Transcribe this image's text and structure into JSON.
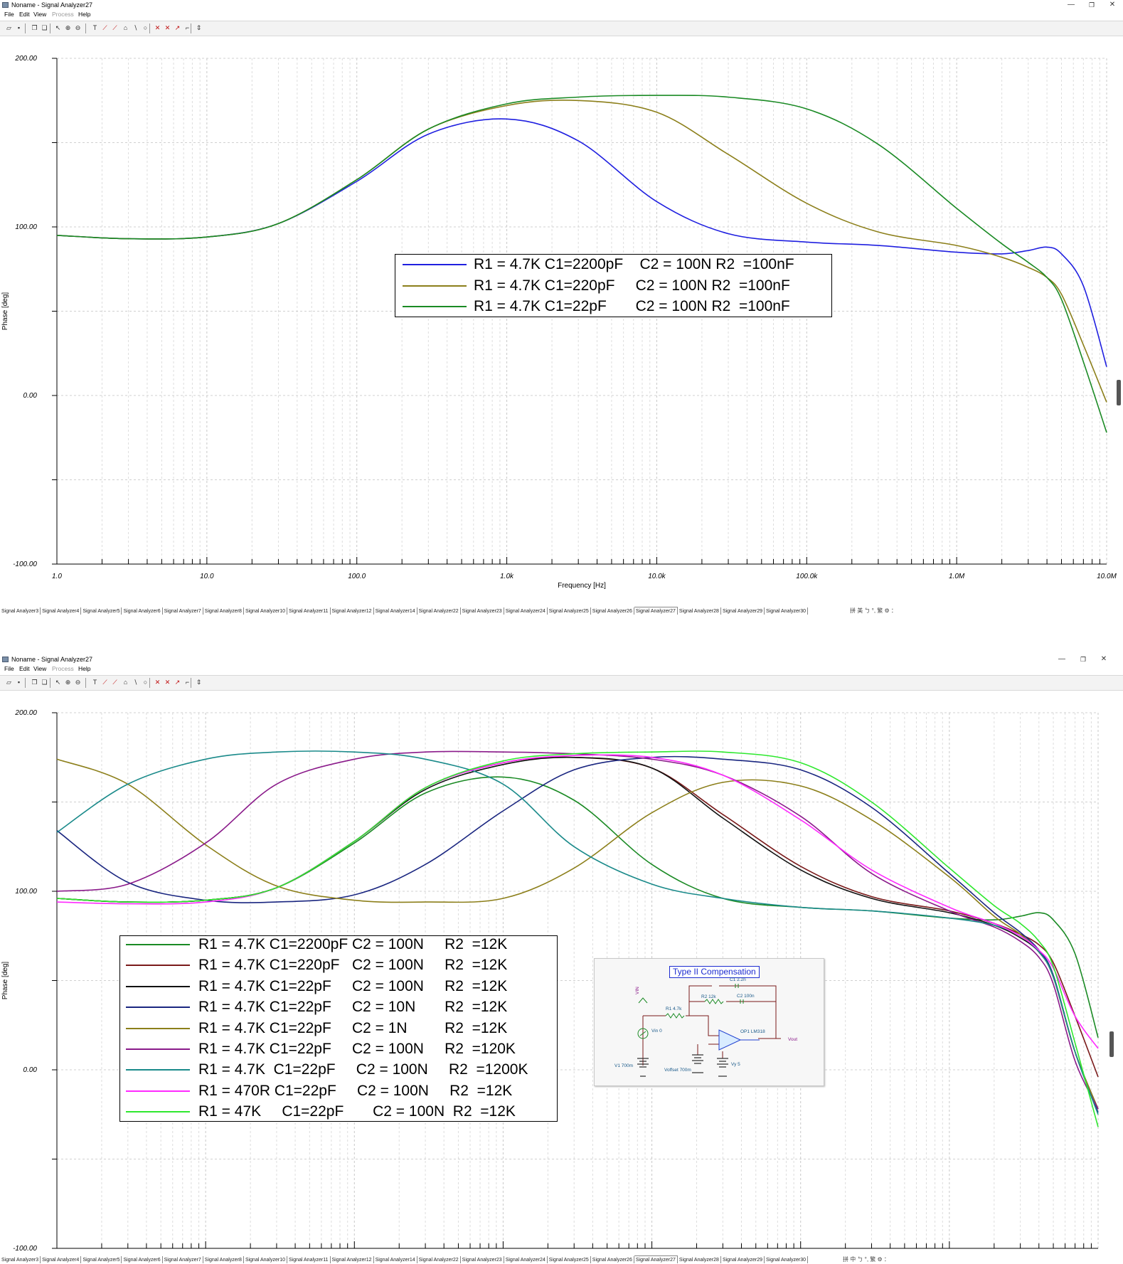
{
  "windows": [
    {
      "title": "Noname - Signal Analyzer27",
      "menu": [
        "File",
        "Edit",
        "View",
        "Process",
        "Help"
      ],
      "menu_disabled": [
        "Process"
      ],
      "window_controls": [
        "minimize-icon",
        "restore-icon",
        "close-icon"
      ],
      "toolbar_icons": [
        "open-icon",
        "save-icon",
        "copy-icon",
        "paste-icon",
        "pointer-icon",
        "zoom-in-icon",
        "zoom-out-icon",
        "text-icon",
        "cursor-a-icon",
        "cursor-b-icon",
        "marker-icon",
        "line-icon",
        "circle-icon",
        "x-cursor-icon",
        "y-cursor-icon",
        "tangent-icon",
        "peak-icon",
        "scroll-arrows-icon"
      ],
      "tabs": [
        "Signal Analyzer3",
        "Signal Analyzer4",
        "Signal Analyzer5",
        "Signal Analyzer6",
        "Signal Analyzer7",
        "Signal Analyzer8",
        "Signal Analyzer10",
        "Signal Analyzer11",
        "Signal Analyzer12",
        "Signal Analyzer14",
        "Signal Analyzer22",
        "Signal Analyzer23",
        "Signal Analyzer24",
        "Signal Analyzer25",
        "Signal Analyzer26",
        "Signal Analyzer27",
        "Signal Analyzer28",
        "Signal Analyzer29",
        "Signal Analyzer30"
      ],
      "active_tab": "Signal Analyzer27",
      "ime_text": "拼 美 ㄅ °, 繁 ⚙ ：",
      "chart_data": {
        "type": "line",
        "title": "",
        "xlabel": "Frequency [Hz]",
        "ylabel": "Phase [deg]",
        "xscale": "log",
        "xlim": [
          1,
          10000000
        ],
        "ylim": [
          -100,
          200
        ],
        "xticks": [
          "1.0",
          "10.0",
          "100.0",
          "1.0k",
          "10.0k",
          "100.0k",
          "1.0M",
          "10.0M"
        ],
        "yticks": [
          "200.00",
          "100.00",
          "0.00",
          "-100.00"
        ],
        "grid": true,
        "legend_position": "center",
        "series": [
          {
            "name": "R1 = 4.7K C1=2200pF    C2 = 100N R2  =100nF",
            "color": "#1f1fe0",
            "x": [
              1,
              3,
              10,
              30,
              100,
              300,
              1000,
              3000,
              10000,
              30000,
              100000,
              300000,
              1000000,
              2000000,
              3000000,
              4000000,
              5000000,
              7000000,
              10000000
            ],
            "y": [
              95,
              93,
              94,
              102,
              127,
              155,
              164,
              151,
              115,
              96,
              91,
              89,
              85,
              84,
              86,
              88,
              84,
              65,
              17
            ]
          },
          {
            "name": "R1 = 4.7K C1=220pF     C2 = 100N R2  =100nF",
            "color": "#8c7f1a",
            "x": [
              1,
              3,
              10,
              30,
              100,
              300,
              1000,
              3000,
              10000,
              30000,
              100000,
              300000,
              1000000,
              2000000,
              3000000,
              4000000,
              5000000,
              7000000,
              10000000
            ],
            "y": [
              95,
              93,
              94,
              102,
              128,
              158,
              172,
              175,
              168,
              143,
              114,
              97,
              89,
              82,
              76,
              70,
              60,
              30,
              -4
            ]
          },
          {
            "name": "R1 = 4.7K C1=22pF       C2 = 100N R2  =100nF",
            "color": "#1a8a24",
            "x": [
              1,
              3,
              10,
              30,
              100,
              300,
              1000,
              3000,
              10000,
              30000,
              100000,
              300000,
              1000000,
              2000000,
              3000000,
              4000000,
              5000000,
              7000000,
              10000000
            ],
            "y": [
              95,
              93,
              94,
              102,
              128,
              158,
              173,
              177,
              178,
              177,
              170,
              149,
              111,
              90,
              79,
              70,
              57,
              20,
              -22
            ]
          }
        ]
      }
    },
    {
      "title": "Noname - Signal Analyzer27",
      "menu": [
        "File",
        "Edit",
        "View",
        "Process",
        "Help"
      ],
      "menu_disabled": [
        "Process"
      ],
      "window_controls": [
        "minimize-icon",
        "restore-icon",
        "close-icon"
      ],
      "toolbar_icons": [
        "open-icon",
        "save-icon",
        "copy-icon",
        "paste-icon",
        "pointer-icon",
        "zoom-in-icon",
        "zoom-out-icon",
        "text-icon",
        "cursor-a-icon",
        "cursor-b-icon",
        "marker-icon",
        "line-icon",
        "circle-icon",
        "x-cursor-icon",
        "y-cursor-icon",
        "tangent-icon",
        "peak-icon",
        "scroll-arrows-icon"
      ],
      "tabs": [
        "Signal Analyzer3",
        "Signal Analyzer4",
        "Signal Analyzer5",
        "Signal Analyzer6",
        "Signal Analyzer7",
        "Signal Analyzer8",
        "Signal Analyzer10",
        "Signal Analyzer11",
        "Signal Analyzer12",
        "Signal Analyzer14",
        "Signal Analyzer22",
        "Signal Analyzer23",
        "Signal Analyzer24",
        "Signal Analyzer25",
        "Signal Analyzer26",
        "Signal Analyzer27",
        "Signal Analyzer28",
        "Signal Analyzer29",
        "Signal Analyzer30"
      ],
      "active_tab": "Signal Analyzer27",
      "ime_text": "拼 中 ㄅ °, 繁 ⚙ ：",
      "schematic": {
        "title": "Type II Compensation",
        "labels": [
          "VIN",
          "R1 4.7k",
          "R2 12k",
          "C1 2.2n",
          "C2 100n",
          "Vin 0",
          "OP1 LM318",
          "Vout",
          "V1 700m",
          "Voffset 700m",
          "Vy 5"
        ]
      },
      "chart_data": {
        "type": "line",
        "title": "",
        "xlabel": "Frequency [Hz]",
        "ylabel": "Phase [deg]",
        "xscale": "log",
        "xlim": [
          1,
          10000000
        ],
        "ylim": [
          -100,
          200
        ],
        "xticks": [
          "1.0",
          "10.0",
          "100.0",
          "1.0k",
          "10.0k",
          "100.0k",
          "1.0M",
          "10.0M"
        ],
        "yticks": [
          "200.00",
          "100.00",
          "0.00",
          "-100.00"
        ],
        "grid": true,
        "legend_position": "bottom-left",
        "series": [
          {
            "name": "R1 = 4.7K C1=2200pF C2 = 100N     R2  =12K",
            "color": "#1a8a24",
            "x": [
              1,
              3,
              10,
              30,
              100,
              300,
              1000,
              3000,
              10000,
              30000,
              100000,
              300000,
              1000000,
              2000000,
              3000000,
              4000000,
              5000000,
              7000000,
              10000000
            ],
            "y": [
              96,
              94,
              95,
              102,
              127,
              155,
              164,
              151,
              115,
              96,
              91,
              89,
              85,
              84,
              86,
              88,
              84,
              65,
              18
            ]
          },
          {
            "name": "R1 = 4.7K C1=220pF   C2 = 100N     R2  =12K",
            "color": "#7a1a1a",
            "x": [
              1,
              3,
              10,
              30,
              100,
              300,
              1000,
              3000,
              10000,
              30000,
              100000,
              300000,
              1000000,
              2000000,
              3000000,
              4000000,
              5000000,
              7000000,
              10000000
            ],
            "y": [
              96,
              94,
              95,
              102,
              128,
              158,
              172,
              175,
              169,
              143,
              114,
              97,
              89,
              82,
              76,
              70,
              60,
              30,
              -4
            ]
          },
          {
            "name": "R1 = 4.7K C1=22pF     C2 = 100N     R2  =12K",
            "color": "#111111",
            "x": [
              1,
              3,
              10,
              30,
              100,
              300,
              1000,
              3000,
              10000,
              30000,
              100000,
              300000,
              1000000,
              2000000,
              3000000,
              4000000,
              5000000,
              7000000,
              10000000
            ],
            "y": [
              96,
              94,
              95,
              102,
              128,
              157,
              171,
              175,
              169,
              141,
              112,
              96,
              88,
              81,
              74,
              66,
              52,
              10,
              -22
            ]
          },
          {
            "name": "R1 = 4.7K C1=22pF     C2 = 10N       R2  =12K",
            "color": "#1a2680",
            "x": [
              1,
              3,
              10,
              30,
              100,
              300,
              1000,
              3000,
              10000,
              30000,
              100000,
              300000,
              1000000,
              2000000,
              3000000,
              4000000,
              5000000,
              7000000,
              10000000
            ],
            "y": [
              134,
              105,
              95,
              94,
              98,
              115,
              145,
              168,
              175,
              174,
              168,
              147,
              110,
              88,
              77,
              67,
              53,
              10,
              -24
            ]
          },
          {
            "name": "R1 = 4.7K C1=22pF     C2 = 1N         R2  =12K",
            "color": "#8c7f1a",
            "x": [
              1,
              3,
              10,
              30,
              100,
              300,
              1000,
              3000,
              10000,
              30000,
              100000,
              300000,
              1000000,
              2000000,
              3000000,
              4000000,
              5000000,
              7000000,
              10000000
            ],
            "y": [
              174,
              160,
              126,
              103,
              95,
              94,
              96,
              113,
              144,
              161,
              159,
              140,
              108,
              86,
              76,
              66,
              52,
              10,
              -22
            ]
          },
          {
            "name": "R1 = 4.7K C1=22pF     C2 = 100N     R2  =120K",
            "color": "#8a1a8a",
            "x": [
              1,
              3,
              10,
              30,
              100,
              300,
              1000,
              3000,
              10000,
              30000,
              100000,
              300000,
              1000000,
              2000000,
              3000000,
              4000000,
              5000000,
              7000000,
              10000000
            ],
            "y": [
              100,
              104,
              127,
              160,
              174,
              178,
              178,
              177,
              174,
              165,
              142,
              110,
              89,
              80,
              72,
              63,
              48,
              5,
              -22
            ]
          },
          {
            "name": "R1 = 4.7K  C1=22pF     C2 = 100N     R2  =1200K",
            "color": "#1a8a8a",
            "x": [
              1,
              3,
              10,
              30,
              100,
              300,
              1000,
              3000,
              10000,
              30000,
              100000,
              300000,
              1000000,
              2000000,
              3000000,
              4000000,
              5000000,
              7000000,
              10000000
            ],
            "y": [
              133,
              160,
              174,
              178,
              178,
              174,
              160,
              125,
              104,
              96,
              91,
              89,
              85,
              81,
              75,
              66,
              52,
              10,
              -25
            ]
          },
          {
            "name": "R1 = 470R C1=22pF     C2 = 100N     R2  =12K",
            "color": "#ff2aff",
            "x": [
              1,
              3,
              10,
              30,
              100,
              300,
              1000,
              3000,
              10000,
              30000,
              100000,
              300000,
              1000000,
              2000000,
              3000000,
              4000000,
              5000000,
              7000000,
              10000000
            ],
            "y": [
              94,
              93,
              94,
              102,
              128,
              158,
              172,
              176,
              175,
              165,
              140,
              112,
              91,
              82,
              75,
              67,
              57,
              30,
              12
            ]
          },
          {
            "name": "R1 = 47K     C1=22pF       C2 = 100N  R2  =12K",
            "color": "#2ee82e",
            "x": [
              1,
              3,
              10,
              30,
              100,
              300,
              1000,
              3000,
              10000,
              30000,
              100000,
              300000,
              1000000,
              2000000,
              3000000,
              4000000,
              5000000,
              7000000,
              10000000
            ],
            "y": [
              96,
              94,
              95,
              102,
              128,
              158,
              173,
              177,
              178,
              178,
              172,
              150,
              113,
              92,
              82,
              72,
              58,
              15,
              -32
            ]
          }
        ]
      }
    }
  ],
  "legend_top": [
    {
      "text": "R1 = 4.7K C1=2200pF    C2 = 100N R2  =100nF",
      "color": "#1f1fe0"
    },
    {
      "text": "R1 = 4.7K C1=220pF     C2 = 100N R2  =100nF",
      "color": "#8c7f1a"
    },
    {
      "text": "R1 = 4.7K C1=22pF       C2 = 100N R2  =100nF",
      "color": "#1a8a24"
    }
  ],
  "legend_bottom": [
    {
      "text": "R1 = 4.7K C1=2200pF C2 = 100N     R2  =12K",
      "color": "#1a8a24"
    },
    {
      "text": "R1 = 4.7K C1=220pF   C2 = 100N     R2  =12K",
      "color": "#7a1a1a"
    },
    {
      "text": "R1 = 4.7K C1=22pF     C2 = 100N     R2  =12K",
      "color": "#111111"
    },
    {
      "text": "R1 = 4.7K C1=22pF     C2 = 10N       R2  =12K",
      "color": "#1a2680"
    },
    {
      "text": "R1 = 4.7K C1=22pF     C2 = 1N         R2  =12K",
      "color": "#8c7f1a"
    },
    {
      "text": "R1 = 4.7K C1=22pF     C2 = 100N     R2  =120K",
      "color": "#8a1a8a"
    },
    {
      "text": "R1 = 4.7K  C1=22pF     C2 = 100N     R2  =1200K",
      "color": "#1a8a8a"
    },
    {
      "text": "R1 = 470R C1=22pF     C2 = 100N     R2  =12K",
      "color": "#ff2aff"
    },
    {
      "text": "R1 = 47K     C1=22pF       C2 = 100N  R2  =12K",
      "color": "#2ee82e"
    }
  ]
}
